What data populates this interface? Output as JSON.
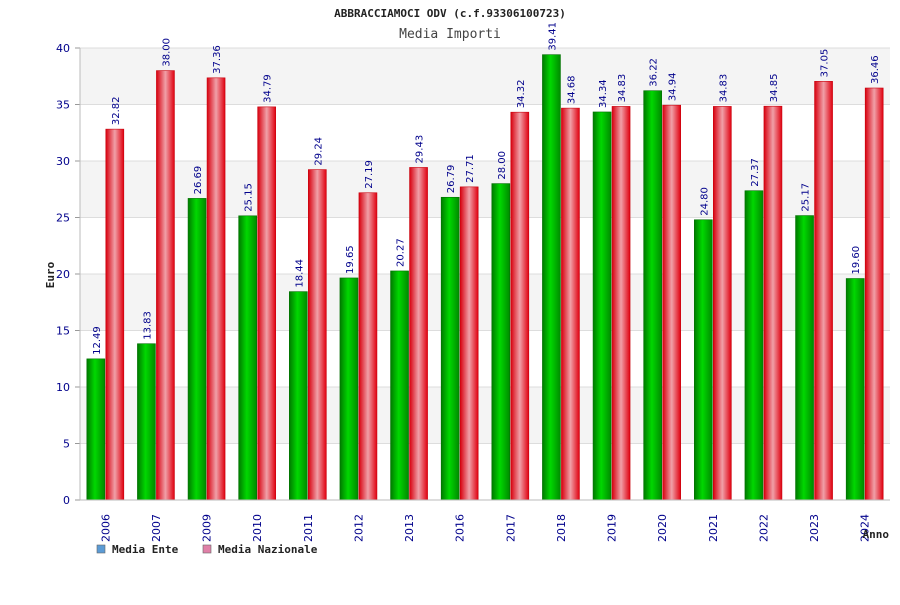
{
  "chart_data": {
    "type": "bar",
    "title": "ABBRACCIAMOCI ODV (c.f.93306100723)",
    "subtitle": "Media Importi",
    "xlabel": "Anno",
    "ylabel": "Euro",
    "ylim": [
      0,
      40
    ],
    "yticks": [
      "0",
      "5",
      "10",
      "15",
      "20",
      "25",
      "30",
      "35",
      "40"
    ],
    "grid": true,
    "legend_position": "bottom-left",
    "categories": [
      "2006",
      "2007",
      "2009",
      "2010",
      "2011",
      "2012",
      "2013",
      "2016",
      "2017",
      "2018",
      "2019",
      "2020",
      "2021",
      "2022",
      "2023",
      "2024"
    ],
    "series": [
      {
        "name": "Media Ente",
        "color": "#00b400",
        "values": [
          12.49,
          13.83,
          26.69,
          25.15,
          18.44,
          19.65,
          20.27,
          26.79,
          28.0,
          39.41,
          34.34,
          36.22,
          24.8,
          27.37,
          25.17,
          19.6
        ],
        "labels": [
          "12.49",
          "13.83",
          "26.69",
          "25.15",
          "18.44",
          "19.65",
          "20.27",
          "26.79",
          "28.00",
          "39.41",
          "34.34",
          "36.22",
          "24.80",
          "27.37",
          "25.17",
          "19.60"
        ]
      },
      {
        "name": "Media Nazionale",
        "color": "#e8101e",
        "values": [
          32.82,
          38.0,
          37.36,
          34.79,
          29.24,
          27.19,
          29.43,
          27.71,
          34.32,
          34.68,
          34.83,
          34.94,
          34.83,
          34.85,
          37.05,
          36.46
        ],
        "labels": [
          "32.82",
          "38.00",
          "37.36",
          "34.79",
          "29.24",
          "27.19",
          "29.43",
          "27.71",
          "34.32",
          "34.68",
          "34.83",
          "34.94",
          "34.83",
          "34.85",
          "37.05",
          "36.46"
        ]
      }
    ],
    "legend": [
      {
        "name": "Media Ente",
        "color": "#5b9bd5"
      },
      {
        "name": "Media Nazionale",
        "color": "#e080a8"
      }
    ]
  }
}
